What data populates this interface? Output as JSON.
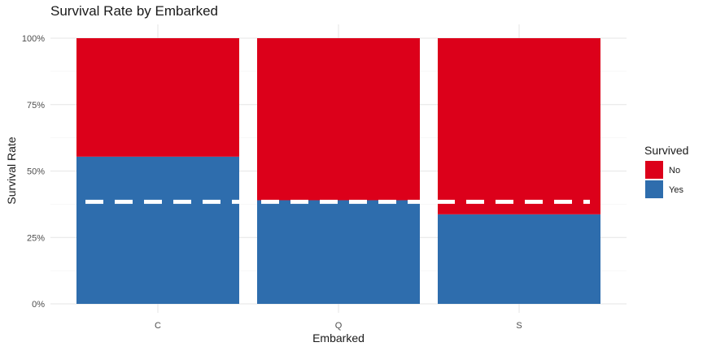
{
  "chart_data": {
    "type": "bar",
    "stacked": true,
    "title": "Survival Rate by Embarked",
    "xlabel": "Embarked",
    "ylabel": "Survival Rate",
    "categories": [
      "C",
      "Q",
      "S"
    ],
    "series": [
      {
        "name": "Yes",
        "color": "#2E6DAD",
        "values": [
          0.554,
          0.39,
          0.337
        ]
      },
      {
        "name": "No",
        "color": "#DC001A",
        "values": [
          0.446,
          0.61,
          0.663
        ]
      }
    ],
    "ylim": [
      0,
      1
    ],
    "yticks": [
      0,
      0.25,
      0.5,
      0.75,
      1.0
    ],
    "ytick_labels": [
      "0%",
      "25%",
      "50%",
      "75%",
      "100%"
    ],
    "reference_line": {
      "value": 0.384,
      "style": "dashed",
      "color": "#FFFFFF"
    },
    "legend": {
      "title": "Survived",
      "position": "right",
      "entries": [
        {
          "label": "No",
          "color": "#DC001A"
        },
        {
          "label": "Yes",
          "color": "#2E6DAD"
        }
      ]
    },
    "grid": true
  }
}
